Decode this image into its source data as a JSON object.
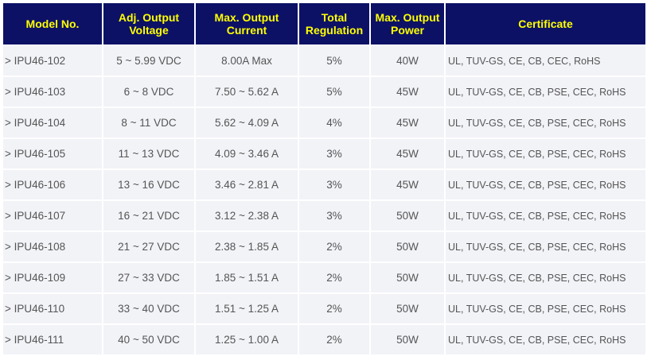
{
  "headers": {
    "model": "Model No.",
    "voltage": "Adj. Output Voltage",
    "current": "Max. Output Current",
    "regulation": "Total Regulation",
    "power": "Max. Output Power",
    "certificate": "Certificate"
  },
  "rows": [
    {
      "model": "> IPU46-102",
      "voltage": "5 ~ 5.99 VDC",
      "current": "8.00A Max",
      "regulation": "5%",
      "power": "40W",
      "certificate": "UL, TUV-GS, CE, CB, CEC, RoHS"
    },
    {
      "model": "> IPU46-103",
      "voltage": "6 ~ 8 VDC",
      "current": "7.50 ~ 5.62 A",
      "regulation": "5%",
      "power": "45W",
      "certificate": "UL, TUV-GS, CE, CB, PSE, CEC, RoHS"
    },
    {
      "model": "> IPU46-104",
      "voltage": "8 ~ 11 VDC",
      "current": "5.62 ~ 4.09 A",
      "regulation": "4%",
      "power": "45W",
      "certificate": "UL, TUV-GS, CE, CB, PSE, CEC, RoHS"
    },
    {
      "model": "> IPU46-105",
      "voltage": "11 ~ 13 VDC",
      "current": "4.09 ~ 3.46 A",
      "regulation": "3%",
      "power": "45W",
      "certificate": "UL, TUV-GS, CE, CB, PSE, CEC, RoHS"
    },
    {
      "model": "> IPU46-106",
      "voltage": "13 ~ 16 VDC",
      "current": "3.46 ~ 2.81 A",
      "regulation": "3%",
      "power": "45W",
      "certificate": "UL, TUV-GS, CE, CB, PSE, CEC, RoHS"
    },
    {
      "model": "> IPU46-107",
      "voltage": "16 ~ 21 VDC",
      "current": "3.12 ~ 2.38 A",
      "regulation": "3%",
      "power": "50W",
      "certificate": "UL, TUV-GS, CE, CB, PSE, CEC, RoHS"
    },
    {
      "model": "> IPU46-108",
      "voltage": "21 ~ 27 VDC",
      "current": "2.38 ~ 1.85 A",
      "regulation": "2%",
      "power": "50W",
      "certificate": "UL, TUV-GS, CE, CB, PSE, CEC, RoHS"
    },
    {
      "model": "> IPU46-109",
      "voltage": "27 ~ 33 VDC",
      "current": "1.85 ~ 1.51 A",
      "regulation": "2%",
      "power": "50W",
      "certificate": "UL, TUV-GS, CE, CB, PSE, CEC, RoHS"
    },
    {
      "model": "> IPU46-110",
      "voltage": "33 ~ 40 VDC",
      "current": "1.51 ~ 1.25 A",
      "regulation": "2%",
      "power": "50W",
      "certificate": "UL, TUV-GS, CE, CB, PSE, CEC, RoHS"
    },
    {
      "model": "> IPU46-111",
      "voltage": "40 ~ 50 VDC",
      "current": "1.25 ~ 1.00 A",
      "regulation": "2%",
      "power": "50W",
      "certificate": "UL, TUV-GS, CE, CB, PSE, CEC, RoHS"
    }
  ]
}
